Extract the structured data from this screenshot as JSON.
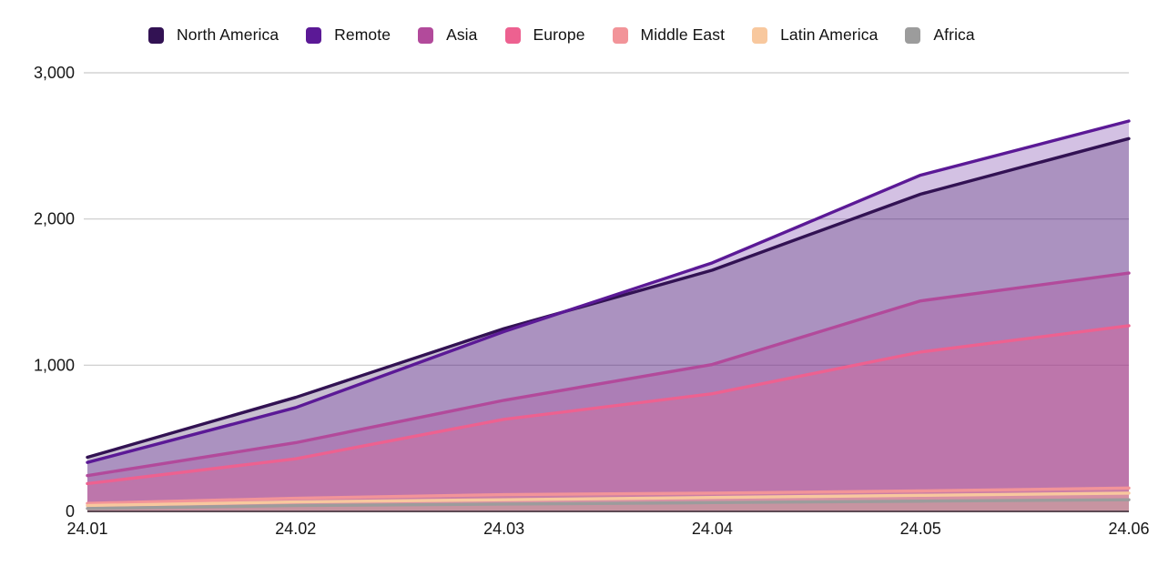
{
  "chart_data": {
    "type": "area",
    "variant": "overlapping-unstacked",
    "title": "",
    "xlabel": "",
    "ylabel": "",
    "categories": [
      "24.01",
      "24.02",
      "24.03",
      "24.04",
      "24.05",
      "24.06"
    ],
    "series": [
      {
        "name": "North America",
        "color": "#321253",
        "values": [
          370,
          780,
          1250,
          1650,
          2170,
          2550
        ]
      },
      {
        "name": "Remote",
        "color": "#5b1996",
        "values": [
          335,
          710,
          1230,
          1700,
          2300,
          2670
        ]
      },
      {
        "name": "Asia",
        "color": "#b24a9b",
        "values": [
          245,
          470,
          760,
          1005,
          1440,
          1630
        ]
      },
      {
        "name": "Europe",
        "color": "#ed6190",
        "values": [
          190,
          360,
          630,
          805,
          1090,
          1270
        ]
      },
      {
        "name": "Middle East",
        "color": "#f29499",
        "values": [
          55,
          90,
          115,
          125,
          140,
          160
        ]
      },
      {
        "name": "Latin America",
        "color": "#f8c89e",
        "values": [
          40,
          65,
          80,
          95,
          110,
          125
        ]
      },
      {
        "name": "Africa",
        "color": "#9c9c9c",
        "values": [
          20,
          40,
          50,
          60,
          70,
          80
        ]
      }
    ],
    "ylim": [
      0,
      3000
    ],
    "yticks": [
      0,
      1000,
      2000,
      3000
    ],
    "ytick_labels": [
      "0",
      "1,000",
      "2,000",
      "3,000"
    ],
    "grid": "horizontal",
    "legend_position": "top",
    "fill_opacity": 0.27,
    "stroke_width": 3.4,
    "colors": {
      "background": "#ffffff",
      "gridline": "#c9c9c9",
      "axis_baseline": "#5d4a54",
      "tick_label": "#161616",
      "legend_label": "#111111"
    }
  }
}
